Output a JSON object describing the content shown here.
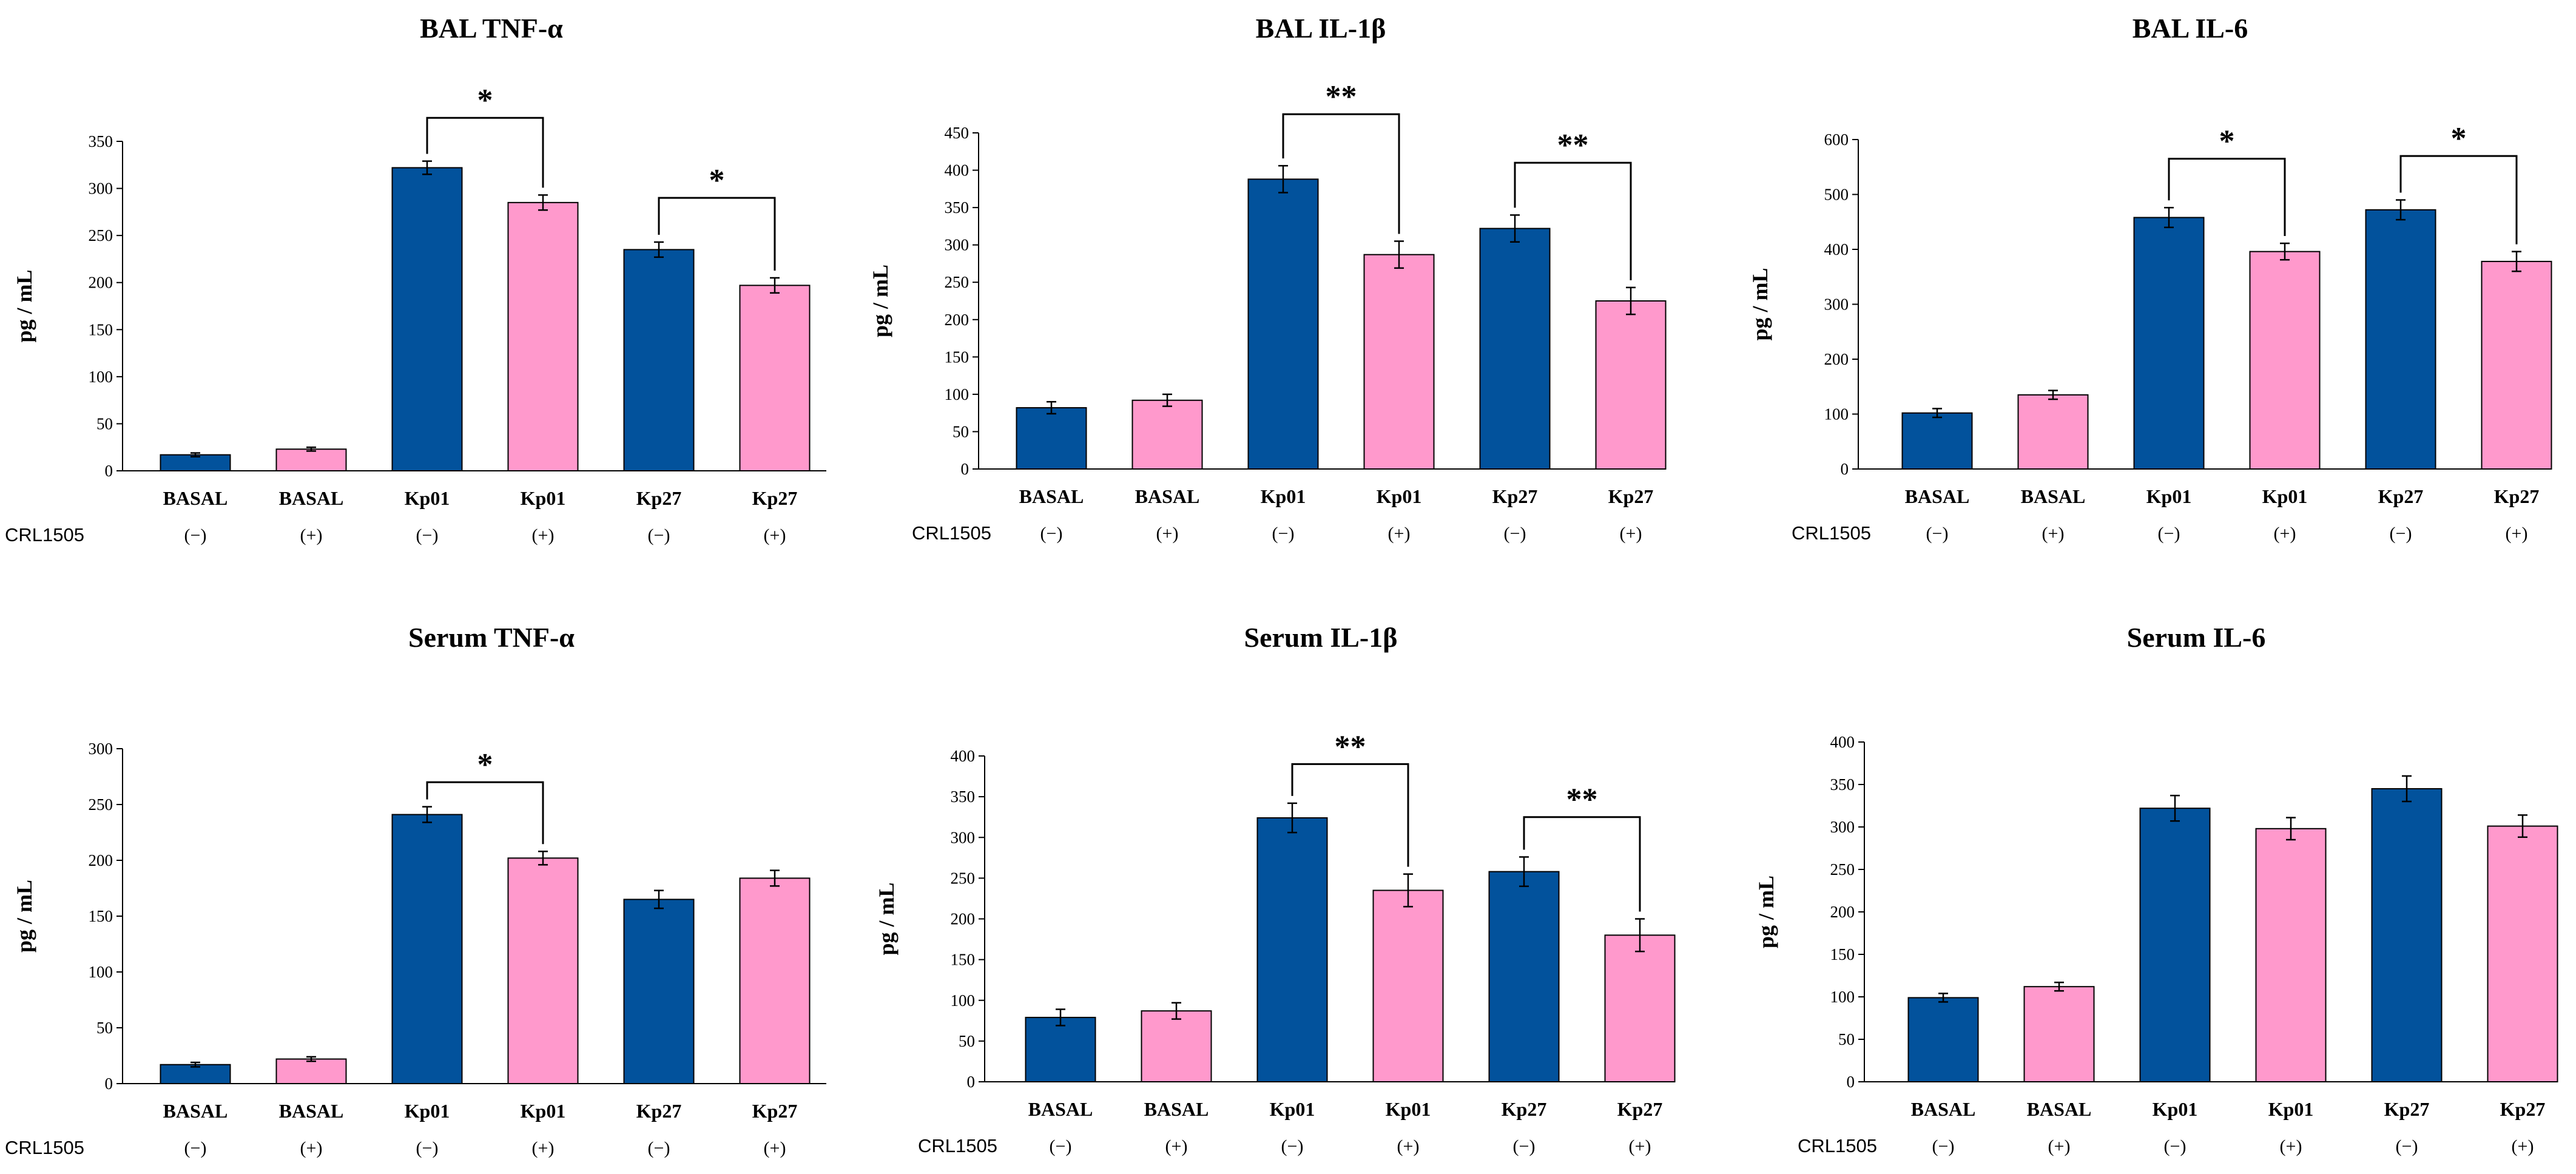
{
  "colors": {
    "minus": "#02529c",
    "plus": "#ff99cc",
    "stroke": "#000000"
  },
  "chart_data": [
    {
      "type": "bar",
      "title": "BAL TNF-α",
      "ylabel": "pg / mL",
      "ylim": [
        0,
        350
      ],
      "yticks": [
        "0",
        "50",
        "100",
        "150",
        "200",
        "250",
        "300",
        "350"
      ],
      "categories": [
        "BASAL",
        "BASAL",
        "Kp01",
        "Kp01",
        "Kp27",
        "Kp27"
      ],
      "row_label": "CRL1505",
      "signs": [
        "(−)",
        "(+)",
        "(−)",
        "(+)",
        "(−)",
        "(+)"
      ],
      "values": [
        17,
        23,
        322,
        285,
        235,
        197
      ],
      "errors": [
        2,
        2,
        7,
        8,
        8,
        8
      ],
      "brackets": [
        {
          "from": 2,
          "to": 3,
          "label": "*",
          "level": 375
        },
        {
          "from": 4,
          "to": 5,
          "label": "*",
          "level": 290
        }
      ]
    },
    {
      "type": "bar",
      "title": "BAL IL-1β",
      "ylabel": "pg / mL",
      "ylim": [
        0,
        450
      ],
      "yticks": [
        "0",
        "50",
        "100",
        "150",
        "200",
        "250",
        "300",
        "350",
        "400",
        "450"
      ],
      "categories": [
        "BASAL",
        "BASAL",
        "Kp01",
        "Kp01",
        "Kp27",
        "Kp27"
      ],
      "row_label": "CRL1505",
      "signs": [
        "(−)",
        "(+)",
        "(−)",
        "(+)",
        "(−)",
        "(+)"
      ],
      "values": [
        82,
        92,
        388,
        287,
        322,
        225
      ],
      "errors": [
        8,
        8,
        18,
        18,
        18,
        18
      ],
      "brackets": [
        {
          "from": 2,
          "to": 3,
          "label": "**",
          "level": 475
        },
        {
          "from": 4,
          "to": 5,
          "label": "**",
          "level": 410
        }
      ]
    },
    {
      "type": "bar",
      "title": "BAL IL-6",
      "ylabel": "pg / mL",
      "ylim": [
        0,
        600
      ],
      "yticks": [
        "0",
        "100",
        "200",
        "300",
        "400",
        "500",
        "600"
      ],
      "categories": [
        "BASAL",
        "BASAL",
        "Kp01",
        "Kp01",
        "Kp27",
        "Kp27"
      ],
      "row_label": "CRL1505",
      "signs": [
        "(−)",
        "(+)",
        "(−)",
        "(+)",
        "(−)",
        "(+)"
      ],
      "values": [
        102,
        135,
        458,
        396,
        472,
        378
      ],
      "errors": [
        8,
        8,
        18,
        15,
        18,
        18
      ],
      "brackets": [
        {
          "from": 2,
          "to": 3,
          "label": "*",
          "level": 565
        },
        {
          "from": 4,
          "to": 5,
          "label": "*",
          "level": 570
        }
      ]
    },
    {
      "type": "bar",
      "title": "Serum TNF-α",
      "ylabel": "pg / mL",
      "ylim": [
        0,
        300
      ],
      "yticks": [
        "0",
        "50",
        "100",
        "150",
        "200",
        "250",
        "300"
      ],
      "categories": [
        "BASAL",
        "BASAL",
        "Kp01",
        "Kp01",
        "Kp27",
        "Kp27"
      ],
      "row_label": "CRL1505",
      "signs": [
        "(−)",
        "(+)",
        "(−)",
        "(+)",
        "(−)",
        "(+)"
      ],
      "values": [
        17,
        22,
        241,
        202,
        165,
        184
      ],
      "errors": [
        2,
        2,
        7,
        6,
        8,
        7
      ],
      "brackets": [
        {
          "from": 2,
          "to": 3,
          "label": "*",
          "level": 270
        }
      ]
    },
    {
      "type": "bar",
      "title": "Serum IL-1β",
      "ylabel": "pg / mL",
      "ylim": [
        0,
        400
      ],
      "yticks": [
        "0",
        "50",
        "100",
        "150",
        "200",
        "250",
        "300",
        "350",
        "400"
      ],
      "categories": [
        "BASAL",
        "BASAL",
        "Kp01",
        "Kp01",
        "Kp27",
        "Kp27"
      ],
      "row_label": "CRL1505",
      "signs": [
        "(−)",
        "(+)",
        "(−)",
        "(+)",
        "(−)",
        "(+)"
      ],
      "values": [
        79,
        87,
        324,
        235,
        258,
        180
      ],
      "errors": [
        10,
        10,
        18,
        20,
        18,
        20
      ],
      "brackets": [
        {
          "from": 2,
          "to": 3,
          "label": "**",
          "level": 390
        },
        {
          "from": 4,
          "to": 5,
          "label": "**",
          "level": 325
        }
      ]
    },
    {
      "type": "bar",
      "title": "Serum IL-6",
      "ylabel": "pg / mL",
      "ylim": [
        0,
        400
      ],
      "yticks": [
        "0",
        "50",
        "100",
        "150",
        "200",
        "250",
        "300",
        "350",
        "400"
      ],
      "categories": [
        "BASAL",
        "BASAL",
        "Kp01",
        "Kp01",
        "Kp27",
        "Kp27"
      ],
      "row_label": "CRL1505",
      "signs": [
        "(−)",
        "(+)",
        "(−)",
        "(+)",
        "(−)",
        "(+)"
      ],
      "values": [
        99,
        112,
        322,
        298,
        345,
        301
      ],
      "errors": [
        5,
        5,
        15,
        13,
        15,
        13
      ],
      "brackets": []
    }
  ]
}
